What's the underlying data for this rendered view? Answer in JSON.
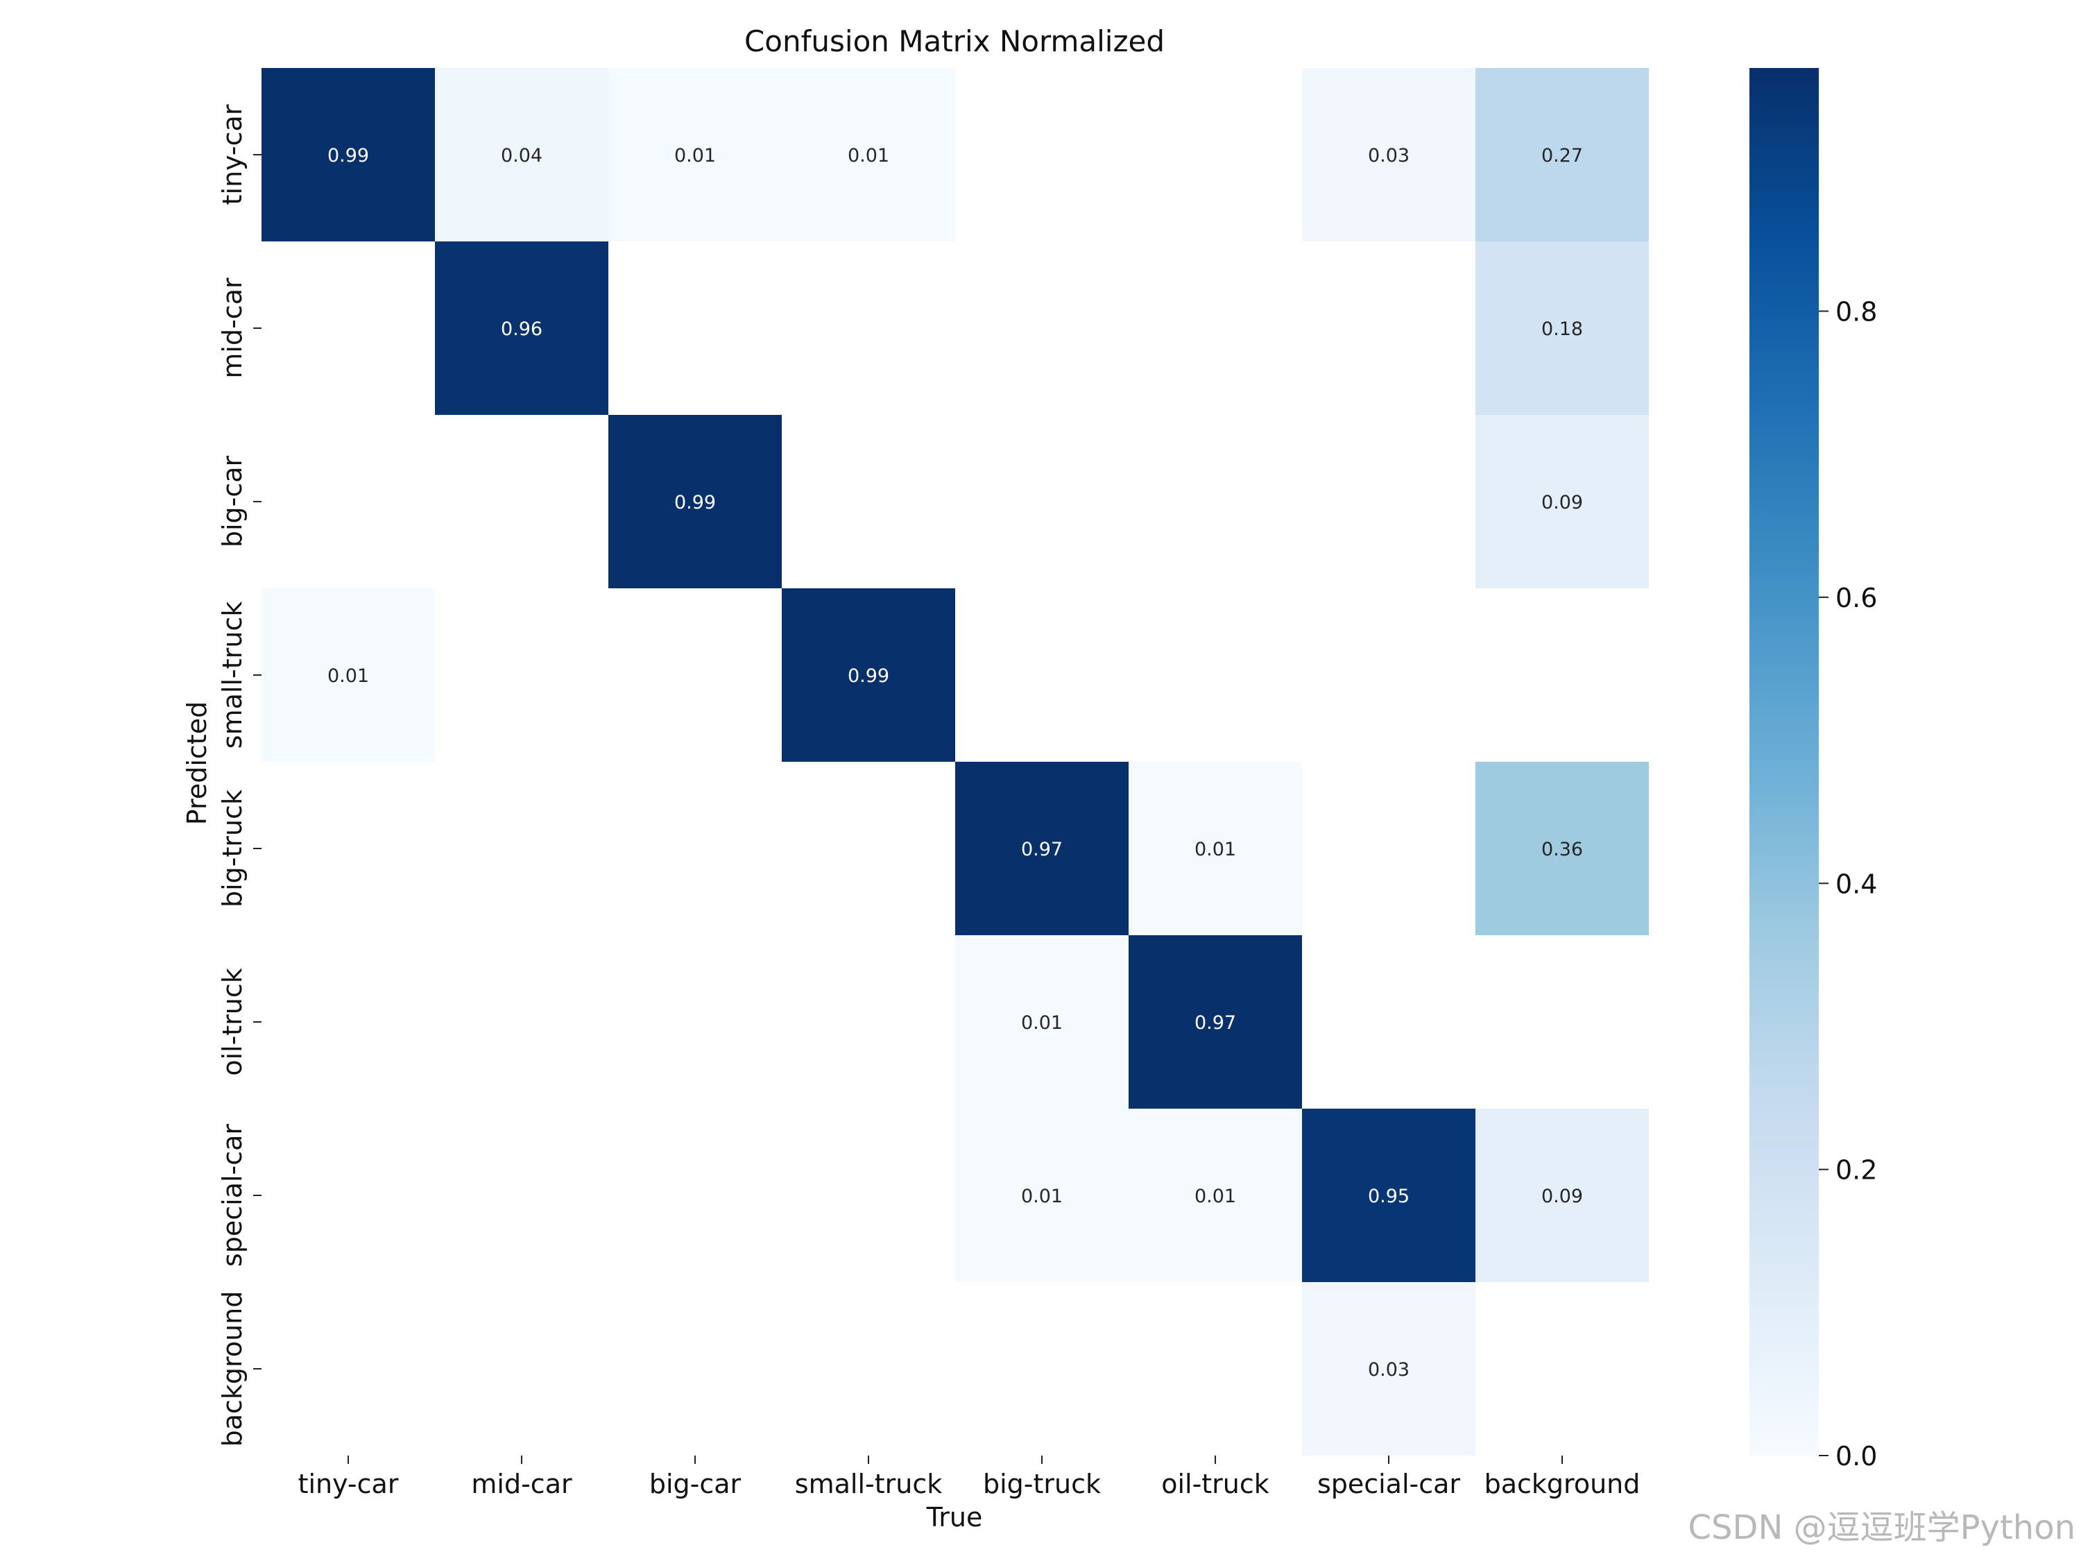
{
  "chart_data": {
    "type": "heatmap",
    "title": "Confusion Matrix Normalized",
    "xlabel": "True",
    "ylabel": "Predicted",
    "x_categories": [
      "tiny-car",
      "mid-car",
      "big-car",
      "small-truck",
      "big-truck",
      "oil-truck",
      "special-car",
      "background"
    ],
    "y_categories": [
      "tiny-car",
      "mid-car",
      "big-car",
      "small-truck",
      "big-truck",
      "oil-truck",
      "special-car",
      "background"
    ],
    "values": [
      [
        0.99,
        0.04,
        0.01,
        0.01,
        null,
        null,
        0.03,
        0.27
      ],
      [
        null,
        0.96,
        null,
        null,
        null,
        null,
        null,
        0.18
      ],
      [
        null,
        null,
        0.99,
        null,
        null,
        null,
        null,
        0.09
      ],
      [
        0.01,
        null,
        null,
        0.99,
        null,
        null,
        null,
        null
      ],
      [
        null,
        null,
        null,
        null,
        0.97,
        0.01,
        null,
        0.36
      ],
      [
        null,
        null,
        null,
        null,
        0.01,
        0.97,
        null,
        null
      ],
      [
        null,
        null,
        null,
        null,
        0.01,
        0.01,
        0.95,
        0.09
      ],
      [
        null,
        null,
        null,
        null,
        null,
        null,
        0.03,
        null
      ]
    ],
    "colorbar": {
      "range": [
        0.0,
        0.97
      ],
      "ticks": [
        0.0,
        0.2,
        0.4,
        0.6,
        0.8
      ],
      "tick_labels": [
        "0.0",
        "0.2",
        "0.4",
        "0.6",
        "0.8"
      ],
      "colormap": "Blues"
    },
    "cell_text_color_light": "#ffffff",
    "cell_text_color_dark": "#262626"
  },
  "watermark": "CSDN @逗逗班学Python"
}
